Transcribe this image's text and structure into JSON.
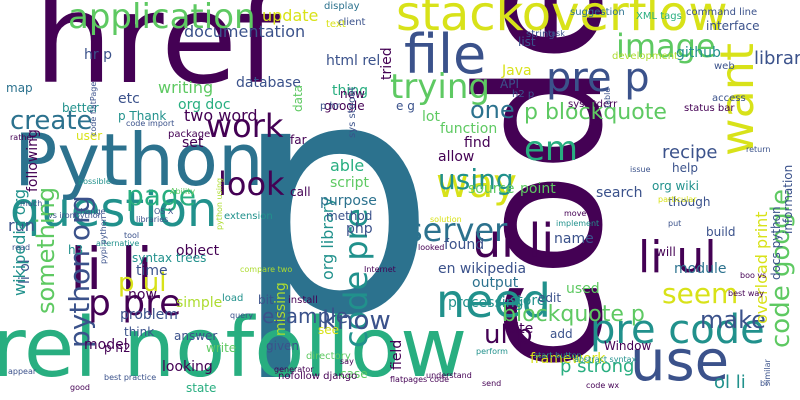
{
  "palette": {
    "c1": "#440154",
    "c2": "#3b528b",
    "c3": "#2c728e",
    "c4": "#21918c",
    "c5": "#28ae80",
    "c6": "#5ec962",
    "c7": "#addc30",
    "c8": "#d8e219"
  },
  "words": [
    {
      "text": "p",
      "color": "c3",
      "vertical": false
    },
    {
      "text": "code",
      "color": "c1",
      "vertical": true
    },
    {
      "text": "href",
      "color": "c1",
      "vertical": false
    },
    {
      "text": "rel nofollow",
      "color": "c5",
      "vertical": false
    },
    {
      "text": "Python",
      "color": "c3",
      "vertical": false
    },
    {
      "text": "li li",
      "color": "c1",
      "vertical": false
    },
    {
      "text": "stackoverflow",
      "color": "c8",
      "vertical": false
    },
    {
      "text": "use",
      "color": "c2",
      "vertical": false
    },
    {
      "text": "file",
      "color": "c2",
      "vertical": false
    },
    {
      "text": "question",
      "color": "c4",
      "vertical": false
    },
    {
      "text": "want",
      "color": "c8",
      "vertical": true
    },
    {
      "text": "need",
      "color": "c4",
      "vertical": false
    },
    {
      "text": "ul li",
      "color": "c1",
      "vertical": false
    },
    {
      "text": "application",
      "color": "c6",
      "vertical": false
    },
    {
      "text": "pre p",
      "color": "c2",
      "vertical": false
    },
    {
      "text": "way",
      "color": "c8",
      "vertical": false
    },
    {
      "text": "trying",
      "color": "c6",
      "vertical": false
    },
    {
      "text": "image",
      "color": "c6",
      "vertical": false
    },
    {
      "text": "pre code",
      "color": "c4",
      "vertical": false
    },
    {
      "text": "li ul",
      "color": "c1",
      "vertical": false
    },
    {
      "text": "python org",
      "color": "c2",
      "vertical": true
    },
    {
      "text": "code pre",
      "color": "c4",
      "vertical": true
    },
    {
      "text": "work",
      "color": "c1",
      "vertical": false
    },
    {
      "text": "p pre",
      "color": "c1",
      "vertical": false
    },
    {
      "text": "look",
      "color": "c1",
      "vertical": false
    },
    {
      "text": "server",
      "color": "c3",
      "vertical": false
    },
    {
      "text": "p ul",
      "color": "c8",
      "vertical": false
    },
    {
      "text": "page",
      "color": "c5",
      "vertical": false
    },
    {
      "text": "create",
      "color": "c3",
      "vertical": false
    },
    {
      "text": "em",
      "color": "c5",
      "vertical": false
    },
    {
      "text": "one",
      "color": "c3",
      "vertical": false
    },
    {
      "text": "know",
      "color": "c2",
      "vertical": false
    },
    {
      "text": "using",
      "color": "c4",
      "vertical": false
    },
    {
      "text": "seem",
      "color": "c8",
      "vertical": false
    },
    {
      "text": "make",
      "color": "c2",
      "vertical": false
    },
    {
      "text": "ul p",
      "color": "c1",
      "vertical": false
    },
    {
      "text": "code google",
      "color": "c6",
      "vertical": true
    },
    {
      "text": "blockquote p",
      "color": "c6",
      "vertical": false
    },
    {
      "text": "p blockquote",
      "color": "c6",
      "vertical": false
    },
    {
      "text": "library",
      "color": "c2",
      "vertical": false
    },
    {
      "text": "recipe",
      "color": "c2",
      "vertical": false
    },
    {
      "text": "something",
      "color": "c6",
      "vertical": true
    },
    {
      "text": "example",
      "color": "c2",
      "vertical": false
    },
    {
      "text": "p strong",
      "color": "c5",
      "vertical": false
    },
    {
      "text": "ol li",
      "color": "c4",
      "vertical": false
    },
    {
      "text": "org library",
      "color": "c4",
      "vertical": true
    },
    {
      "text": "update",
      "color": "c8",
      "vertical": false
    },
    {
      "text": "documentation",
      "color": "c2",
      "vertical": false
    },
    {
      "text": "writing",
      "color": "c6",
      "vertical": false
    },
    {
      "text": "org doc",
      "color": "c5",
      "vertical": false
    },
    {
      "text": "etc",
      "color": "c2",
      "vertical": false
    },
    {
      "text": "html rel",
      "color": "c2",
      "vertical": false
    },
    {
      "text": "thing",
      "color": "c5",
      "vertical": false
    },
    {
      "text": "database",
      "color": "c2",
      "vertical": false
    },
    {
      "text": "google",
      "color": "c1",
      "vertical": false
    },
    {
      "text": "lot",
      "color": "c6",
      "vertical": false
    },
    {
      "text": "function",
      "color": "c6",
      "vertical": false
    },
    {
      "text": "find",
      "color": "c1",
      "vertical": false
    },
    {
      "text": "allow",
      "color": "c1",
      "vertical": false
    },
    {
      "text": "able",
      "color": "c5",
      "vertical": false
    },
    {
      "text": "script",
      "color": "c6",
      "vertical": false
    },
    {
      "text": "purpose",
      "color": "c3",
      "vertical": false
    },
    {
      "text": "method",
      "color": "c2",
      "vertical": false
    },
    {
      "text": "php",
      "color": "c2",
      "vertical": false
    },
    {
      "text": "source",
      "color": "c6",
      "vertical": false
    },
    {
      "text": "point",
      "color": "c6",
      "vertical": false
    },
    {
      "text": "search",
      "color": "c2",
      "vertical": false
    },
    {
      "text": "name",
      "color": "c2",
      "vertical": false
    },
    {
      "text": "found",
      "color": "c2",
      "vertical": false
    },
    {
      "text": "en wikipedia",
      "color": "c2",
      "vertical": false
    },
    {
      "text": "output",
      "color": "c3",
      "vertical": false
    },
    {
      "text": "processing",
      "color": "c4",
      "vertical": false
    },
    {
      "text": "store",
      "color": "c4",
      "vertical": false
    },
    {
      "text": "edit",
      "color": "c2",
      "vertical": false
    },
    {
      "text": "site",
      "color": "c1",
      "vertical": false
    },
    {
      "text": "add",
      "color": "c2",
      "vertical": false
    },
    {
      "text": "framework",
      "color": "c8",
      "vertical": false
    },
    {
      "text": "used",
      "color": "c6",
      "vertical": false
    },
    {
      "text": "will",
      "color": "c1",
      "vertical": false
    },
    {
      "text": "module",
      "color": "c3",
      "vertical": false
    },
    {
      "text": "build",
      "color": "c2",
      "vertical": false
    },
    {
      "text": "help",
      "color": "c2",
      "vertical": false
    },
    {
      "text": "though",
      "color": "c2",
      "vertical": false
    },
    {
      "text": "org wiki",
      "color": "c4",
      "vertical": false
    },
    {
      "text": "overload print",
      "color": "c8",
      "vertical": true
    },
    {
      "text": "docs python",
      "color": "c2",
      "vertical": true
    },
    {
      "text": "information",
      "color": "c2",
      "vertical": true
    },
    {
      "text": "object",
      "color": "c1",
      "vertical": false
    },
    {
      "text": "time",
      "color": "c2",
      "vertical": false
    },
    {
      "text": "now",
      "color": "c1",
      "vertical": false
    },
    {
      "text": "simple",
      "color": "c7",
      "vertical": false
    },
    {
      "text": "bit",
      "color": "c2",
      "vertical": false
    },
    {
      "text": "problem",
      "color": "c2",
      "vertical": false
    },
    {
      "text": "answer",
      "color": "c2",
      "vertical": false
    },
    {
      "text": "think",
      "color": "c2",
      "vertical": false
    },
    {
      "text": "model",
      "color": "c1",
      "vertical": false
    },
    {
      "text": "p h2",
      "color": "c1",
      "vertical": false
    },
    {
      "text": "write",
      "color": "c6",
      "vertical": false
    },
    {
      "text": "looking",
      "color": "c1",
      "vertical": false
    },
    {
      "text": "state",
      "color": "c5",
      "vertical": false
    },
    {
      "text": "given",
      "color": "c2",
      "vertical": false
    },
    {
      "text": "case",
      "color": "c6",
      "vertical": false
    },
    {
      "text": "see",
      "color": "c8",
      "vertical": false
    },
    {
      "text": "run",
      "color": "c2",
      "vertical": false
    },
    {
      "text": "li ol",
      "color": "c2",
      "vertical": true
    },
    {
      "text": "following",
      "color": "c1",
      "vertical": true
    },
    {
      "text": "wikipedia org",
      "color": "c4",
      "vertical": true
    },
    {
      "text": "missing",
      "color": "c7",
      "vertical": true
    },
    {
      "text": "field",
      "color": "c1",
      "vertical": true
    },
    {
      "text": "call",
      "color": "c1",
      "vertical": false
    },
    {
      "text": "far",
      "color": "c1",
      "vertical": false
    },
    {
      "text": "two word",
      "color": "c1",
      "vertical": false
    },
    {
      "text": "set",
      "color": "c1",
      "vertical": false
    },
    {
      "text": "p Thank",
      "color": "c4",
      "vertical": false
    },
    {
      "text": "list",
      "color": "c2",
      "vertical": false
    },
    {
      "text": "tried",
      "color": "c1",
      "vertical": true
    },
    {
      "text": "github",
      "color": "c4",
      "vertical": false
    },
    {
      "text": "API",
      "color": "c2",
      "vertical": false
    },
    {
      "text": "e g",
      "color": "c2",
      "vertical": false
    },
    {
      "text": "data",
      "color": "c6",
      "vertical": true
    },
    {
      "text": "Java",
      "color": "c8",
      "vertical": false
    },
    {
      "text": "h3",
      "color": "c4",
      "vertical": false
    },
    {
      "text": "hr p",
      "color": "c2",
      "vertical": false
    },
    {
      "text": "map",
      "color": "c3",
      "vertical": false
    },
    {
      "text": "user",
      "color": "c8",
      "vertical": false
    },
    {
      "text": "text",
      "color": "c8",
      "vertical": false
    },
    {
      "text": "Window",
      "color": "c1",
      "vertical": false
    },
    {
      "text": "string",
      "color": "c2",
      "vertical": false
    },
    {
      "text": "interface",
      "color": "c2",
      "vertical": false
    },
    {
      "text": "better",
      "color": "c4",
      "vertical": false
    },
    {
      "text": "web",
      "color": "c2",
      "vertical": false
    },
    {
      "text": "access",
      "color": "c2",
      "vertical": false
    },
    {
      "text": "status bar",
      "color": "c1",
      "vertical": false
    },
    {
      "text": "syntax trees",
      "color": "c4",
      "vertical": false
    },
    {
      "text": "suggestion",
      "color": "c3",
      "vertical": false
    },
    {
      "text": "XML tags",
      "color": "c5",
      "vertical": false
    },
    {
      "text": "command line",
      "color": "c2",
      "vertical": false
    },
    {
      "text": "client",
      "color": "c2",
      "vertical": false
    },
    {
      "text": "display",
      "color": "c3",
      "vertical": false
    },
    {
      "text": "development",
      "color": "c7",
      "vertical": false
    },
    {
      "text": "new",
      "color": "c1",
      "vertical": false
    },
    {
      "text": "h2 p",
      "color": "c2",
      "vertical": false
    },
    {
      "text": "p hr",
      "color": "c2",
      "vertical": false
    },
    {
      "text": "sys stderr",
      "color": "c1",
      "vertical": false
    },
    {
      "text": "sys stdout",
      "color": "c2",
      "vertical": true
    },
    {
      "text": "possible",
      "color": "c4",
      "vertical": false
    },
    {
      "text": "alternative",
      "color": "c4",
      "vertical": false
    },
    {
      "text": "Ability",
      "color": "c6",
      "vertical": false
    },
    {
      "text": "code import",
      "color": "c2",
      "vertical": false
    },
    {
      "text": "package",
      "color": "c1",
      "vertical": false
    },
    {
      "text": "looked",
      "color": "c1",
      "vertical": false
    },
    {
      "text": "solution",
      "color": "c8",
      "vertical": false
    },
    {
      "text": "implement",
      "color": "c4",
      "vertical": false
    },
    {
      "text": "move",
      "color": "c1",
      "vertical": false
    },
    {
      "text": "Internet",
      "color": "c1",
      "vertical": false
    },
    {
      "text": "extension",
      "color": "c4",
      "vertical": false
    },
    {
      "text": "load",
      "color": "c4",
      "vertical": false
    },
    {
      "text": "query",
      "color": "c2",
      "vertical": false
    },
    {
      "text": "install",
      "color": "c1",
      "vertical": false
    },
    {
      "text": "directory",
      "color": "c6",
      "vertical": false
    },
    {
      "text": "nofollow django",
      "color": "c1",
      "vertical": false
    },
    {
      "text": "say",
      "color": "c1",
      "vertical": false
    },
    {
      "text": "understand",
      "color": "c1",
      "vertical": false
    },
    {
      "text": "perform",
      "color": "c4",
      "vertical": false
    },
    {
      "text": "start button",
      "color": "c4",
      "vertical": false
    },
    {
      "text": "abstract syntax",
      "color": "c4",
      "vertical": false
    },
    {
      "text": "code wx",
      "color": "c1",
      "vertical": false
    },
    {
      "text": "send",
      "color": "c1",
      "vertical": false
    },
    {
      "text": "flatpages code",
      "color": "c1",
      "vertical": false
    },
    {
      "text": "good",
      "color": "c1",
      "vertical": false
    },
    {
      "text": "appear",
      "color": "c2",
      "vertical": false
    },
    {
      "text": "best practice",
      "color": "c2",
      "vertical": false
    },
    {
      "text": "compare two",
      "color": "c7",
      "vertical": false
    },
    {
      "text": "generator",
      "color": "c1",
      "vertical": false
    },
    {
      "text": "rather",
      "color": "c1",
      "vertical": false
    },
    {
      "text": "code flatPage",
      "color": "c2",
      "vertical": true
    },
    {
      "text": "change",
      "color": "c2",
      "vertical": false
    },
    {
      "text": "much",
      "color": "c2",
      "vertical": false
    },
    {
      "text": "OS X",
      "color": "c2",
      "vertical": false
    },
    {
      "text": "tool",
      "color": "c2",
      "vertical": false
    },
    {
      "text": "read",
      "color": "c2",
      "vertical": false
    },
    {
      "text": "pypi python",
      "color": "c2",
      "vertical": true
    },
    {
      "text": "libraries",
      "color": "c2",
      "vertical": false
    },
    {
      "text": "vs ironpython",
      "color": "c2",
      "vertical": false
    },
    {
      "text": "python using",
      "color": "c7",
      "vertical": true
    },
    {
      "text": "table",
      "color": "c2",
      "vertical": true
    },
    {
      "text": "task",
      "color": "c2",
      "vertical": false
    },
    {
      "text": "issue",
      "color": "c2",
      "vertical": false
    },
    {
      "text": "particular",
      "color": "c8",
      "vertical": false
    },
    {
      "text": "put",
      "color": "c2",
      "vertical": false
    },
    {
      "text": "return",
      "color": "c2",
      "vertical": false
    },
    {
      "text": "best way",
      "color": "c1",
      "vertical": false
    },
    {
      "text": "boo vs",
      "color": "c1",
      "vertical": false
    },
    {
      "text": "br",
      "color": "c2",
      "vertical": false
    },
    {
      "text": "similar",
      "color": "c2",
      "vertical": true
    }
  ]
}
